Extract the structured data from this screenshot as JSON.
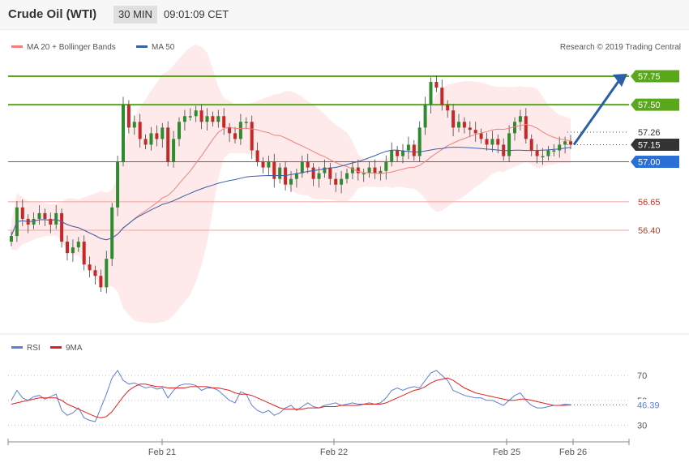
{
  "header": {
    "title": "Crude Oil (WTI)",
    "timeframe": "30 MIN",
    "time": "09:01:09 CET"
  },
  "legend": {
    "ma20": "MA 20 + Bollinger Bands",
    "ma50": "MA 50",
    "ma20_color": "#f08080",
    "ma50_color": "#3a5ea8"
  },
  "copyright": "Research © 2019 Trading Central",
  "rsi_legend": {
    "rsi": "RSI",
    "ma": "9MA",
    "rsi_color": "#5b7fd6",
    "ma_color": "#e02020"
  },
  "chart_data": {
    "type": "candlestick",
    "instrument": "Crude Oil (WTI)",
    "interval": "30 MIN",
    "ylim": [
      55.48,
      58.12
    ],
    "x_ticks": [
      "Feb 21",
      "Feb 22",
      "Feb 25",
      "Feb 26"
    ],
    "levels": [
      {
        "label": "57.75",
        "value": 57.75,
        "color": "#5aa71c",
        "kind": "resistance"
      },
      {
        "label": "57.50",
        "value": 57.5,
        "color": "#5aa71c",
        "kind": "resistance"
      },
      {
        "label": "57.26",
        "value": 57.26,
        "color": "#ffffff",
        "kind": "dotted"
      },
      {
        "label": "57.15",
        "value": 57.15,
        "color": "#333333",
        "kind": "price"
      },
      {
        "label": "57.00",
        "value": 57.0,
        "color": "#2a6fd6",
        "kind": "pivot"
      },
      {
        "label": "56.65",
        "value": 56.65,
        "color": "#ffffff",
        "kind": "support"
      },
      {
        "label": "56.40",
        "value": 56.4,
        "color": "#ffffff",
        "kind": "support"
      }
    ],
    "close": [
      56.35,
      56.6,
      56.5,
      56.45,
      56.5,
      56.55,
      56.5,
      56.45,
      56.55,
      56.3,
      56.2,
      56.25,
      56.3,
      56.1,
      56.05,
      56.0,
      55.9,
      56.15,
      56.6,
      57.0,
      57.5,
      57.3,
      57.35,
      57.2,
      57.15,
      57.25,
      57.2,
      57.3,
      57.0,
      57.2,
      57.35,
      57.4,
      57.4,
      57.45,
      57.35,
      57.4,
      57.35,
      57.4,
      57.3,
      57.25,
      57.2,
      57.35,
      57.35,
      57.1,
      57.0,
      56.95,
      57.0,
      56.85,
      56.95,
      56.8,
      56.85,
      56.9,
      57.0,
      56.95,
      56.85,
      56.9,
      56.95,
      56.85,
      56.8,
      56.85,
      56.9,
      56.95,
      56.9,
      56.9,
      56.95,
      56.9,
      56.92,
      57.0,
      57.1,
      57.05,
      57.1,
      57.15,
      57.05,
      57.3,
      57.5,
      57.7,
      57.65,
      57.5,
      57.45,
      57.3,
      57.35,
      57.3,
      57.28,
      57.25,
      57.2,
      57.15,
      57.2,
      57.15,
      57.05,
      57.25,
      57.35,
      57.4,
      57.2,
      57.1,
      57.05,
      57.05,
      57.1,
      57.1,
      57.15,
      57.18,
      57.15
    ],
    "rsi": {
      "ticks": [
        "70",
        "50",
        "30"
      ],
      "ylim": [
        20,
        85
      ],
      "current": "46.39",
      "values": [
        50,
        58,
        52,
        50,
        53,
        54,
        51,
        53,
        55,
        42,
        38,
        40,
        44,
        36,
        34,
        33,
        44,
        55,
        68,
        74,
        66,
        63,
        64,
        62,
        60,
        61,
        59,
        60,
        52,
        58,
        62,
        63,
        63,
        62,
        58,
        60,
        60,
        58,
        54,
        50,
        48,
        57,
        55,
        46,
        42,
        40,
        42,
        38,
        40,
        44,
        46,
        42,
        45,
        48,
        45,
        44,
        46,
        47,
        48,
        46,
        47,
        48,
        47,
        47,
        48,
        47,
        48,
        52,
        58,
        60,
        58,
        60,
        61,
        60,
        66,
        72,
        74,
        70,
        66,
        58,
        56,
        54,
        53,
        52,
        52,
        50,
        50,
        48,
        46,
        50,
        54,
        56,
        50,
        46,
        44,
        44,
        45,
        46,
        46,
        47,
        46.39
      ],
      "ma": [
        47,
        48,
        49,
        50,
        51,
        52,
        52,
        52,
        52,
        50,
        47,
        45,
        43,
        41,
        39,
        37,
        36,
        37,
        41,
        47,
        53,
        58,
        61,
        63,
        63,
        62,
        61,
        61,
        60,
        60,
        60,
        60,
        61,
        61,
        61,
        61,
        60,
        60,
        59,
        58,
        56,
        55,
        55,
        54,
        52,
        50,
        48,
        46,
        44,
        43,
        43,
        43,
        43,
        44,
        44,
        44,
        45,
        45,
        45,
        46,
        46,
        46,
        46,
        47,
        47,
        47,
        47,
        48,
        50,
        52,
        54,
        56,
        58,
        59,
        61,
        64,
        66,
        67,
        68,
        66,
        63,
        60,
        58,
        56,
        55,
        54,
        53,
        52,
        51,
        50,
        50,
        51,
        51,
        50,
        49,
        48,
        47,
        46,
        46,
        46,
        46.5
      ]
    }
  }
}
